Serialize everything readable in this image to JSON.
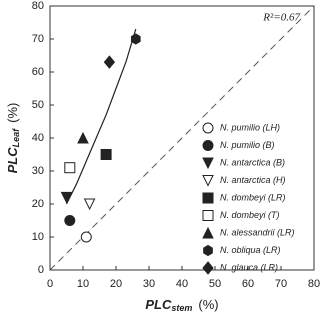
{
  "chart_data": {
    "type": "scatter",
    "x_label": {
      "main": "PLC",
      "sub": "stem",
      "unit": "(%)"
    },
    "y_label": {
      "main": "PLC",
      "sub": "Leaf",
      "unit": "(%)"
    },
    "annotation": "R²=0.67",
    "xlim": [
      0,
      80
    ],
    "ylim": [
      0,
      80
    ],
    "xticks": [
      0,
      10,
      20,
      30,
      40,
      50,
      60,
      70,
      80
    ],
    "yticks": [
      0,
      10,
      20,
      30,
      40,
      50,
      60,
      70,
      80
    ],
    "legend": "lower right",
    "series": [
      {
        "name": "N. pumilio (LH)",
        "marker": "circle-open",
        "color": "#222222",
        "x": [
          11
        ],
        "values": [
          10
        ]
      },
      {
        "name": "N. pumilio (B)",
        "marker": "circle",
        "color": "#222222",
        "x": [
          6
        ],
        "values": [
          15
        ]
      },
      {
        "name": "N. antarctica (B)",
        "marker": "triangle-down",
        "color": "#222222",
        "x": [
          5
        ],
        "values": [
          22
        ]
      },
      {
        "name": "N. antarctica (H)",
        "marker": "triangle-down-open",
        "color": "#222222",
        "x": [
          12
        ],
        "values": [
          20
        ]
      },
      {
        "name": "N. dombeyi (LR)",
        "marker": "square",
        "color": "#222222",
        "x": [
          17
        ],
        "values": [
          35
        ]
      },
      {
        "name": "N. dombeyi (T)",
        "marker": "square-open",
        "color": "#222222",
        "x": [
          6
        ],
        "values": [
          31
        ]
      },
      {
        "name": "N. alessandrii (LR)",
        "marker": "triangle-up",
        "color": "#222222",
        "x": [
          10
        ],
        "values": [
          40
        ]
      },
      {
        "name": "N. obliqua (LR)",
        "marker": "hexagon",
        "color": "#222222",
        "x": [
          26
        ],
        "values": [
          70
        ]
      },
      {
        "name": "N. glauca (LR)",
        "marker": "diamond",
        "color": "#222222",
        "x": [
          18
        ],
        "values": [
          63
        ]
      }
    ],
    "fit": {
      "x": [
        5,
        8,
        11,
        14,
        17,
        20,
        23,
        26
      ],
      "values": [
        20,
        26,
        33,
        40,
        47,
        55,
        63,
        73
      ]
    }
  }
}
